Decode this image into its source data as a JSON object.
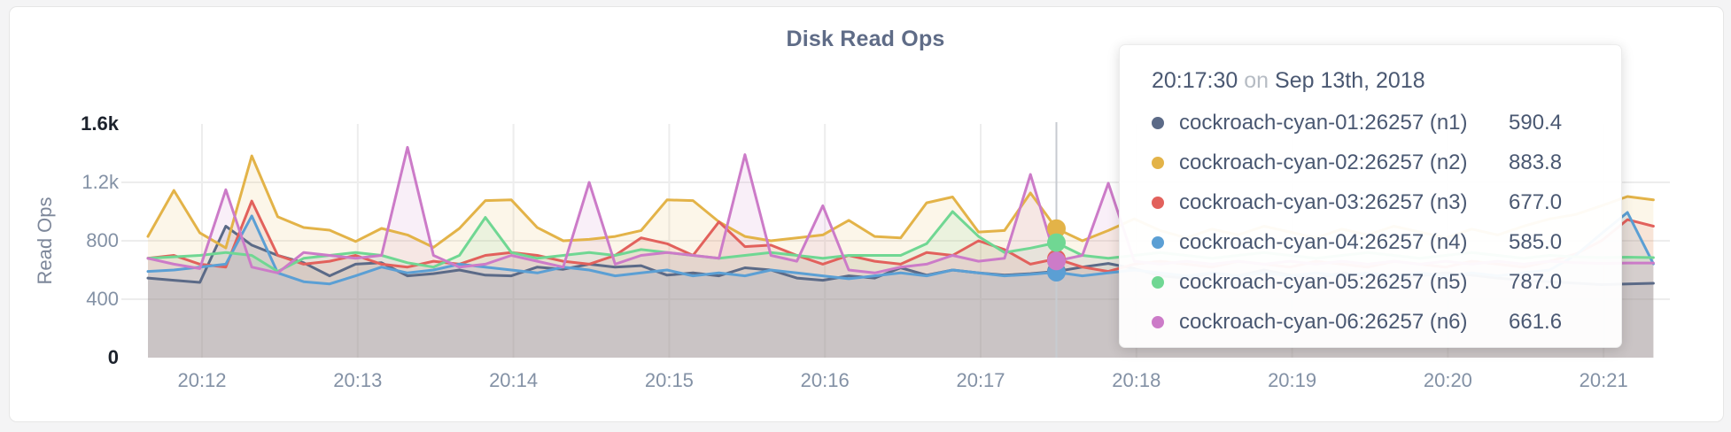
{
  "page": {
    "title": "Disk Read Ops"
  },
  "chart_data": {
    "type": "line",
    "title": "Disk Read Ops",
    "xlabel": "",
    "ylabel": "Read Ops",
    "ylim": [
      0,
      1600
    ],
    "grid": true,
    "legend_position": "tooltip",
    "y_ticks": [
      {
        "label": "0",
        "value": 0
      },
      {
        "label": "400",
        "value": 400
      },
      {
        "label": "800",
        "value": 800
      },
      {
        "label": "1.2k",
        "value": 1200
      },
      {
        "label": "1.6k",
        "value": 1600
      }
    ],
    "x_ticks": [
      "20:12",
      "20:13",
      "20:14",
      "20:15",
      "20:16",
      "20:17",
      "20:18",
      "20:19",
      "20:20",
      "20:21"
    ],
    "start_time": "20:11:40",
    "sample_interval_seconds": 10,
    "hover": {
      "index": 35,
      "time": "20:17:30"
    },
    "series": [
      {
        "name": "cockroach-cyan-01:26257 (n1)",
        "node": "n1",
        "color": "#5b6a87",
        "values": [
          545,
          530,
          515,
          900,
          770,
          700,
          650,
          560,
          640,
          650,
          560,
          575,
          600,
          565,
          560,
          620,
          605,
          640,
          620,
          630,
          565,
          580,
          560,
          615,
          600,
          545,
          530,
          560,
          545,
          615,
          565,
          600,
          580,
          565,
          575,
          590.4,
          620,
          645,
          610,
          560,
          545,
          580,
          560,
          600,
          565,
          545,
          580,
          560,
          545,
          560,
          580,
          565,
          545,
          530,
          520,
          510,
          500,
          505,
          509
        ]
      },
      {
        "name": "cockroach-cyan-02:26257 (n2)",
        "node": "n2",
        "color": "#e3b348",
        "values": [
          830,
          1145,
          854,
          751,
          1381,
          964,
          891,
          873,
          795,
          885,
          840,
          755,
          885,
          1075,
          1080,
          890,
          800,
          810,
          830,
          870,
          1080,
          1075,
          930,
          830,
          800,
          820,
          840,
          940,
          830,
          820,
          1060,
          1100,
          860,
          870,
          1127,
          883.8,
          800,
          870,
          950,
          870,
          820,
          880,
          840,
          900,
          860,
          820,
          880,
          840,
          900,
          860,
          820,
          880,
          840,
          900,
          950,
          980,
          1040,
          1103,
          1080
        ]
      },
      {
        "name": "cockroach-cyan-03:26257 (n3)",
        "node": "n3",
        "color": "#e2615c",
        "values": [
          680,
          700,
          640,
          620,
          1072,
          700,
          640,
          660,
          700,
          640,
          620,
          660,
          640,
          700,
          720,
          700,
          660,
          640,
          700,
          820,
          780,
          700,
          930,
          760,
          770,
          700,
          640,
          700,
          660,
          640,
          720,
          700,
          800,
          740,
          640,
          677,
          620,
          590,
          640,
          660,
          640,
          620,
          660,
          640,
          620,
          660,
          640,
          620,
          660,
          640,
          620,
          660,
          640,
          620,
          660,
          709,
          800,
          945,
          900
        ]
      },
      {
        "name": "cockroach-cyan-04:26257 (n4)",
        "node": "n4",
        "color": "#5b9fd4",
        "values": [
          590,
          600,
          620,
          640,
          970,
          580,
          520,
          505,
          560,
          620,
          580,
          600,
          640,
          620,
          600,
          580,
          620,
          600,
          560,
          580,
          600,
          560,
          580,
          560,
          600,
          580,
          560,
          540,
          560,
          580,
          560,
          600,
          580,
          560,
          570,
          585,
          560,
          580,
          600,
          580,
          560,
          580,
          560,
          580,
          560,
          580,
          560,
          580,
          560,
          580,
          560,
          580,
          560,
          580,
          600,
          700,
          850,
          994,
          642
        ]
      },
      {
        "name": "cockroach-cyan-05:26257 (n5)",
        "node": "n5",
        "color": "#70d793",
        "values": [
          680,
          690,
          700,
          720,
          700,
          590,
          680,
          700,
          720,
          700,
          650,
          620,
          700,
          960,
          720,
          680,
          700,
          720,
          700,
          740,
          720,
          700,
          680,
          700,
          720,
          700,
          680,
          700,
          700,
          700,
          780,
          1000,
          830,
          720,
          750,
          787,
          700,
          680,
          700,
          720,
          700,
          680,
          700,
          720,
          700,
          680,
          700,
          720,
          700,
          680,
          700,
          720,
          700,
          680,
          700,
          690,
          685,
          688,
          685
        ]
      },
      {
        "name": "cockroach-cyan-06:26257 (n6)",
        "node": "n6",
        "color": "#cc7bc8",
        "values": [
          680,
          640,
          610,
          1150,
          620,
          580,
          720,
          700,
          680,
          700,
          1440,
          700,
          620,
          640,
          700,
          660,
          620,
          1200,
          640,
          700,
          720,
          700,
          680,
          1390,
          700,
          660,
          1040,
          600,
          580,
          620,
          640,
          700,
          660,
          680,
          1254,
          661.6,
          700,
          1194,
          660,
          640,
          660,
          640,
          660,
          640,
          660,
          640,
          660,
          640,
          660,
          640,
          660,
          640,
          660,
          640,
          660,
          650,
          645,
          648,
          648
        ]
      }
    ]
  },
  "tooltip": {
    "time": "20:17:30",
    "conjunction": "on",
    "date": "Sep 13th, 2018",
    "rows": [
      {
        "label": "cockroach-cyan-01:26257 (n1)",
        "value": "590.4",
        "color": "#5b6a87"
      },
      {
        "label": "cockroach-cyan-02:26257 (n2)",
        "value": "883.8",
        "color": "#e3b348"
      },
      {
        "label": "cockroach-cyan-03:26257 (n3)",
        "value": "677.0",
        "color": "#e2615c"
      },
      {
        "label": "cockroach-cyan-04:26257 (n4)",
        "value": "585.0",
        "color": "#5b9fd4"
      },
      {
        "label": "cockroach-cyan-05:26257 (n5)",
        "value": "787.0",
        "color": "#70d793"
      },
      {
        "label": "cockroach-cyan-06:26257 (n6)",
        "value": "661.6",
        "color": "#cc7bc8"
      }
    ]
  }
}
